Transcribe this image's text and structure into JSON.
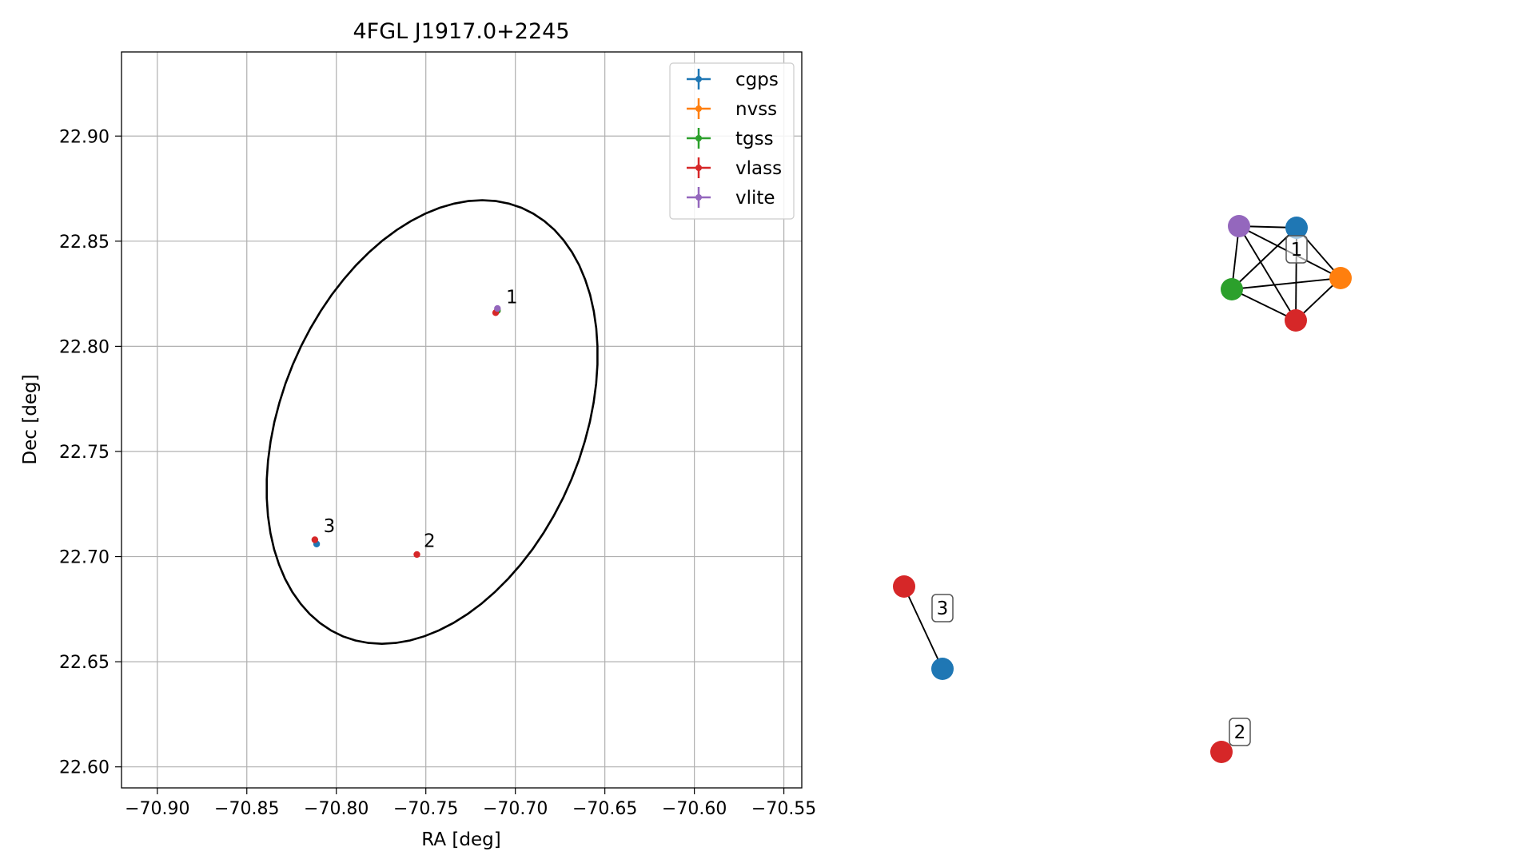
{
  "chart_data": [
    {
      "type": "scatter",
      "title": "4FGL J1917.0+2245",
      "xlabel": "RA [deg]",
      "ylabel": "Dec [deg]",
      "xlim": [
        -70.92,
        -70.54
      ],
      "ylim": [
        22.59,
        22.94
      ],
      "xticks": [
        -70.9,
        -70.85,
        -70.8,
        -70.75,
        -70.7,
        -70.65,
        -70.6,
        -70.55
      ],
      "xtick_labels": [
        "−70.90",
        "−70.85",
        "−70.80",
        "−70.75",
        "−70.70",
        "−70.65",
        "−70.60",
        "−70.55"
      ],
      "yticks": [
        22.6,
        22.65,
        22.7,
        22.75,
        22.8,
        22.85,
        22.9
      ],
      "ytick_labels": [
        "22.60",
        "22.65",
        "22.70",
        "22.75",
        "22.80",
        "22.85",
        "22.90"
      ],
      "grid": true,
      "legend_position": "top-right",
      "series": [
        {
          "name": "cgps",
          "color": "#1f77b4",
          "points": [
            {
              "x": -70.71,
              "y": 22.817
            },
            {
              "x": -70.811,
              "y": 22.706
            }
          ]
        },
        {
          "name": "nvss",
          "color": "#ff7f0e",
          "points": [
            {
              "x": -70.71,
              "y": 22.817
            }
          ]
        },
        {
          "name": "tgss",
          "color": "#2ca02c",
          "points": [
            {
              "x": -70.71,
              "y": 22.817
            }
          ]
        },
        {
          "name": "vlass",
          "color": "#d62728",
          "points": [
            {
              "x": -70.711,
              "y": 22.816
            },
            {
              "x": -70.755,
              "y": 22.701
            },
            {
              "x": -70.812,
              "y": 22.708
            }
          ]
        },
        {
          "name": "vlite",
          "color": "#9467bd",
          "points": [
            {
              "x": -70.71,
              "y": 22.818
            }
          ]
        }
      ],
      "annotations": [
        {
          "text": "1",
          "x": -70.707,
          "y": 22.819
        },
        {
          "text": "2",
          "x": -70.753,
          "y": 22.703
        },
        {
          "text": "3",
          "x": -70.809,
          "y": 22.71
        }
      ],
      "ellipse": {
        "cx": -70.7465,
        "cy": 22.764,
        "rx_deg": 0.0813,
        "ry_deg": 0.1143,
        "color": "#000000"
      }
    },
    {
      "type": "network",
      "nodes": [
        {
          "id": "n1-cgps",
          "color": "#1f77b4"
        },
        {
          "id": "n1-vlite",
          "color": "#9467bd"
        },
        {
          "id": "n1-nvss",
          "color": "#ff7f0e"
        },
        {
          "id": "n1-tgss",
          "color": "#2ca02c"
        },
        {
          "id": "n1-vlass",
          "color": "#d62728"
        },
        {
          "id": "n3-vlass",
          "color": "#d62728"
        },
        {
          "id": "n3-cgps",
          "color": "#1f77b4"
        },
        {
          "id": "n2-vlass",
          "color": "#d62728"
        }
      ],
      "edges": [
        [
          "n1-vlite",
          "n1-cgps"
        ],
        [
          "n1-vlite",
          "n1-nvss"
        ],
        [
          "n1-vlite",
          "n1-tgss"
        ],
        [
          "n1-vlite",
          "n1-vlass"
        ],
        [
          "n1-cgps",
          "n1-nvss"
        ],
        [
          "n1-cgps",
          "n1-tgss"
        ],
        [
          "n1-cgps",
          "n1-vlass"
        ],
        [
          "n1-nvss",
          "n1-tgss"
        ],
        [
          "n1-nvss",
          "n1-vlass"
        ],
        [
          "n1-tgss",
          "n1-vlass"
        ],
        [
          "n3-vlass",
          "n3-cgps"
        ]
      ],
      "labels": [
        {
          "text": "1"
        },
        {
          "text": "3"
        },
        {
          "text": "2"
        }
      ]
    }
  ]
}
